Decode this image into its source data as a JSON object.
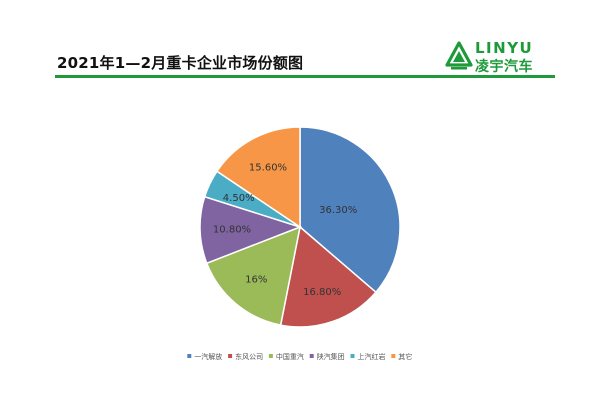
{
  "header": {
    "title": "2021年1—2月重卡企业市场份额图",
    "logo_wordmark": "LINYU",
    "logo_name": "凌宇汽车",
    "accent_color": "#1e9a3a",
    "logo_icon": "triangle-emblem-icon"
  },
  "chart_data": {
    "type": "pie",
    "title": "2021年1—2月重卡企业市场份额图",
    "start_angle": "12 o'clock, clockwise",
    "legend_position": "bottom",
    "slices": [
      {
        "name": "一汽解放",
        "value": 36.3,
        "label": "36.30%",
        "color": "#4f81bd"
      },
      {
        "name": "东风公司",
        "value": 16.8,
        "label": "16.80%",
        "color": "#c0504d"
      },
      {
        "name": "中国重汽",
        "value": 16.0,
        "label": "16%",
        "color": "#9bbb59"
      },
      {
        "name": "陕汽集团",
        "value": 10.8,
        "label": "10.80%",
        "color": "#8064a2"
      },
      {
        "name": "上汽红岩",
        "value": 4.5,
        "label": "4.50%",
        "color": "#4bacc6"
      },
      {
        "name": "其它",
        "value": 15.6,
        "label": "15.60%",
        "color": "#f79646"
      }
    ]
  }
}
